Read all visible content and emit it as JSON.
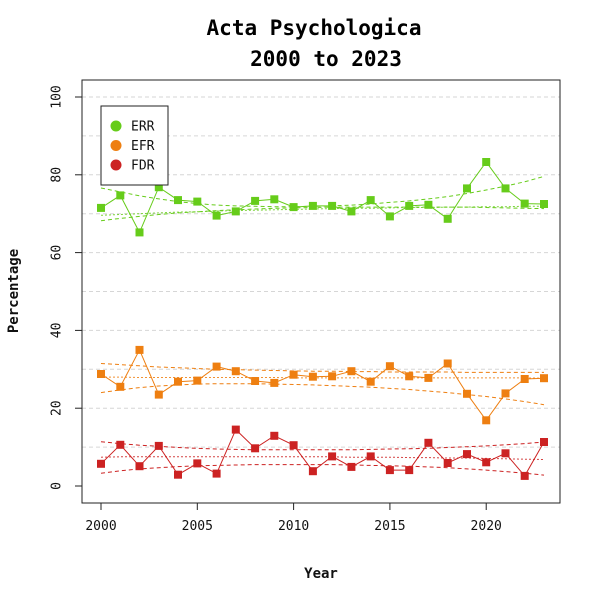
{
  "chart_data": {
    "type": "line",
    "title": [
      "Acta Psychologica",
      "2000 to 2023"
    ],
    "xlabel": "Year",
    "ylabel": "Percentage",
    "xlim": [
      2000,
      2023
    ],
    "ylim": [
      0,
      100
    ],
    "xticks": [
      2000,
      2005,
      2010,
      2015,
      2020
    ],
    "yticks": [
      0,
      20,
      40,
      60,
      80,
      100
    ],
    "grid": "horizontal dashed",
    "legend": "top-left",
    "x": [
      2000,
      2001,
      2002,
      2003,
      2004,
      2005,
      2006,
      2007,
      2008,
      2009,
      2010,
      2011,
      2012,
      2013,
      2014,
      2015,
      2016,
      2017,
      2018,
      2019,
      2020,
      2021,
      2022,
      2023
    ],
    "series": [
      {
        "name": "ERR",
        "color": "#66cc1a",
        "values": [
          71.5,
          74.7,
          65.2,
          76.8,
          73.5,
          73.1,
          69.5,
          70.6,
          73.3,
          73.7,
          71.7,
          72.0,
          72.0,
          70.6,
          73.5,
          69.3,
          72.0,
          72.3,
          68.7,
          76.5,
          83.3,
          76.5,
          72.6,
          72.5
        ],
        "trend": [
          69.6,
          69.8,
          70.0,
          70.2,
          70.4,
          70.5,
          70.7,
          70.8,
          70.9,
          71.0,
          71.1,
          71.2,
          71.3,
          71.4,
          71.4,
          71.5,
          71.6,
          71.6,
          71.7,
          71.7,
          71.8,
          71.8,
          71.9,
          71.9
        ],
        "ci_upper": [
          76.6,
          75.6,
          74.6,
          73.8,
          73.1,
          72.6,
          72.2,
          72.0,
          71.9,
          71.8,
          71.8,
          71.9,
          72.0,
          72.2,
          72.5,
          72.9,
          73.3,
          73.8,
          74.4,
          75.2,
          76.1,
          77.1,
          78.2,
          79.6
        ],
        "ci_lower": [
          68.2,
          68.8,
          69.3,
          69.8,
          70.2,
          70.5,
          70.8,
          71.0,
          71.2,
          71.4,
          71.5,
          71.6,
          71.7,
          71.7,
          71.7,
          71.7,
          71.7,
          71.7,
          71.7,
          71.7,
          71.6,
          71.5,
          71.4,
          71.3
        ]
      },
      {
        "name": "EFR",
        "color": "#ee7f11",
        "values": [
          28.8,
          25.5,
          35.0,
          23.5,
          26.8,
          27.1,
          30.7,
          29.5,
          27.0,
          26.5,
          28.6,
          28.1,
          28.2,
          29.5,
          26.8,
          30.8,
          28.2,
          27.8,
          31.5,
          23.7,
          16.9,
          23.8,
          27.5,
          27.7
        ],
        "trend": [
          28.0,
          28.0,
          27.9,
          27.9,
          27.9,
          27.9,
          27.9,
          27.9,
          27.9,
          27.9,
          27.8,
          27.8,
          27.8,
          27.8,
          27.8,
          27.8,
          27.8,
          27.8,
          27.8,
          27.8,
          27.8,
          27.8,
          27.8,
          27.7
        ],
        "ci_upper": [
          31.5,
          31.2,
          30.9,
          30.6,
          30.4,
          30.2,
          30.0,
          29.9,
          29.8,
          29.7,
          29.6,
          29.5,
          29.5,
          29.4,
          29.4,
          29.3,
          29.3,
          29.3,
          29.3,
          29.2,
          29.2,
          29.2,
          29.2,
          29.2
        ],
        "ci_lower": [
          24.0,
          24.7,
          25.3,
          25.7,
          26.0,
          26.2,
          26.3,
          26.3,
          26.3,
          26.2,
          26.1,
          26.0,
          25.8,
          25.6,
          25.4,
          25.1,
          24.8,
          24.4,
          24.0,
          23.5,
          23.0,
          22.4,
          21.7,
          20.9
        ]
      },
      {
        "name": "FDR",
        "color": "#cc2222",
        "values": [
          5.7,
          10.6,
          5.1,
          10.3,
          2.9,
          5.8,
          3.2,
          14.5,
          9.7,
          12.9,
          10.5,
          3.8,
          7.6,
          4.9,
          7.6,
          4.1,
          4.1,
          11.1,
          5.9,
          8.2,
          6.1,
          8.4,
          2.6,
          11.3
        ],
        "trend": [
          7.4,
          7.5,
          7.5,
          7.5,
          7.5,
          7.5,
          7.5,
          7.5,
          7.5,
          7.5,
          7.5,
          7.5,
          7.5,
          7.4,
          7.4,
          7.4,
          7.3,
          7.3,
          7.2,
          7.2,
          7.1,
          7.0,
          6.9,
          6.8
        ],
        "ci_upper": [
          11.4,
          10.9,
          10.5,
          10.2,
          9.9,
          9.7,
          9.5,
          9.4,
          9.3,
          9.3,
          9.3,
          9.3,
          9.3,
          9.3,
          9.4,
          9.5,
          9.6,
          9.7,
          9.9,
          10.1,
          10.3,
          10.6,
          10.9,
          11.3
        ],
        "ci_lower": [
          3.3,
          3.9,
          4.4,
          4.7,
          5.0,
          5.2,
          5.3,
          5.4,
          5.5,
          5.5,
          5.5,
          5.5,
          5.5,
          5.4,
          5.3,
          5.2,
          5.1,
          4.9,
          4.7,
          4.4,
          4.1,
          3.7,
          3.3,
          2.8
        ]
      }
    ]
  }
}
